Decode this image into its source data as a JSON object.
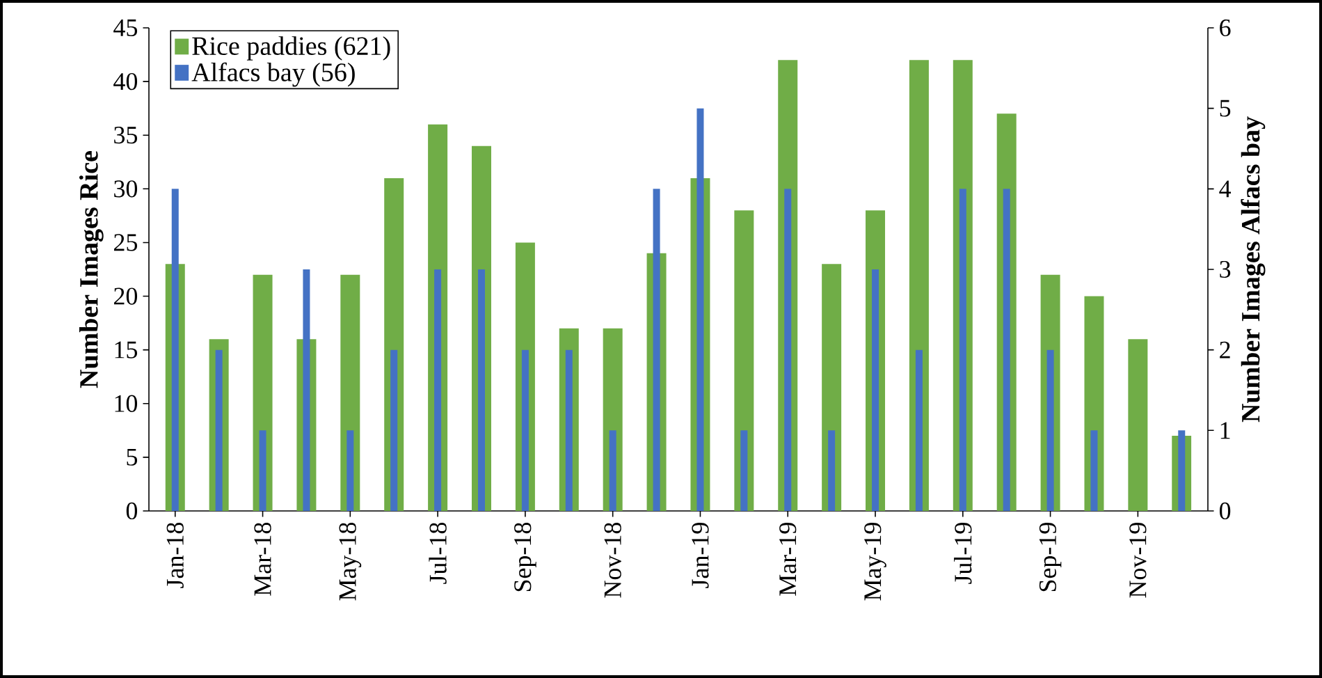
{
  "chart_data": {
    "type": "bar",
    "xlabel": null,
    "ylabel": "Number Images Rice",
    "y2label": "Number Images Alfacs bay",
    "categories": [
      "Jan-18",
      null,
      "Mar-18",
      null,
      "May-18",
      null,
      "Jul-18",
      null,
      "Sep-18",
      null,
      "Nov-18",
      null,
      "Jan-19",
      null,
      "Mar-19",
      null,
      "May-19",
      null,
      "Jul-19",
      null,
      "Sep-19",
      null,
      "Nov-19",
      null
    ],
    "series": [
      {
        "name": "Rice paddies (621)",
        "color": "#70ad47",
        "values": [
          23,
          16,
          22,
          16,
          22,
          31,
          36,
          34,
          25,
          17,
          17,
          24,
          31,
          28,
          42,
          23,
          28,
          42,
          42,
          37,
          22,
          20,
          16,
          7
        ]
      },
      {
        "name": "Alfacs bay (56)",
        "color": "#4472c4",
        "axis": "y2",
        "values": [
          4,
          2,
          1,
          3,
          1,
          2,
          3,
          3,
          2,
          2,
          1,
          4,
          5,
          1,
          4,
          1,
          3,
          2,
          4,
          4,
          2,
          1,
          0,
          1
        ]
      }
    ],
    "ylim": [
      0,
      45
    ],
    "yticks": [
      0,
      5,
      10,
      15,
      20,
      25,
      30,
      35,
      40,
      45
    ],
    "y2lim": [
      0,
      6
    ],
    "y2ticks": [
      0,
      1,
      2,
      3,
      4,
      5,
      6
    ],
    "legend": "top left"
  }
}
